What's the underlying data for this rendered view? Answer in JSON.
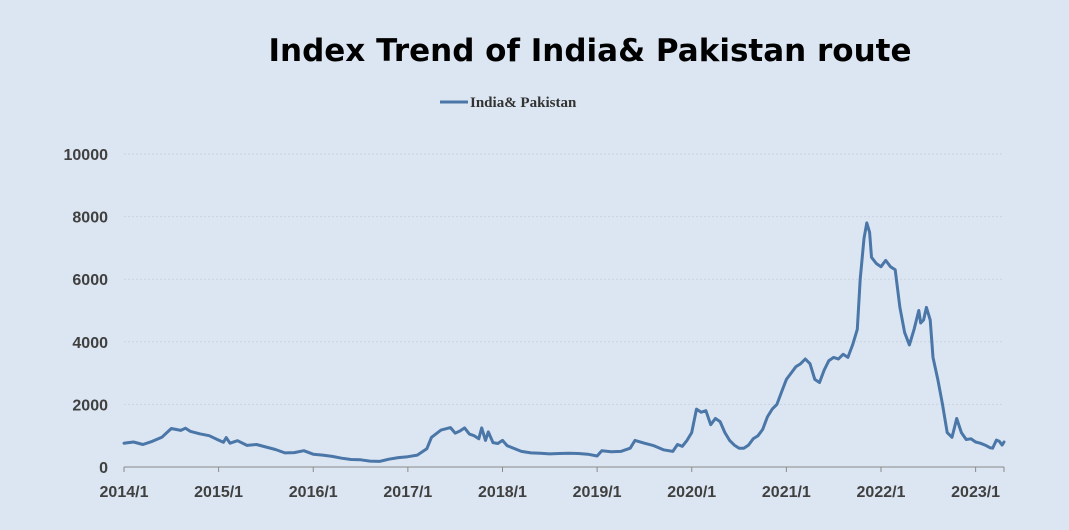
{
  "chart_data": {
    "type": "line",
    "title": "Index Trend of India& Pakistan route",
    "xlabel": "",
    "ylabel": "",
    "ylim": [
      0,
      10000
    ],
    "yticks": [
      0,
      2000,
      4000,
      6000,
      8000,
      10000
    ],
    "xticks": [
      "2014/1",
      "2015/1",
      "2016/1",
      "2017/1",
      "2018/1",
      "2019/1",
      "2020/1",
      "2021/1",
      "2022/1",
      "2023/1"
    ],
    "xlim": [
      2014.0,
      2023.3
    ],
    "grid": "horizontal",
    "legend_position": "top-center",
    "colors": {
      "series": "#4a76a8",
      "background": "#dce6f2"
    },
    "series": [
      {
        "name": "India& Pakistan",
        "points": [
          [
            2014.0,
            760
          ],
          [
            2014.1,
            800
          ],
          [
            2014.2,
            720
          ],
          [
            2014.3,
            820
          ],
          [
            2014.4,
            950
          ],
          [
            2014.5,
            1230
          ],
          [
            2014.6,
            1170
          ],
          [
            2014.65,
            1240
          ],
          [
            2014.7,
            1140
          ],
          [
            2014.8,
            1060
          ],
          [
            2014.9,
            1000
          ],
          [
            2015.0,
            860
          ],
          [
            2015.05,
            790
          ],
          [
            2015.08,
            940
          ],
          [
            2015.12,
            760
          ],
          [
            2015.2,
            840
          ],
          [
            2015.3,
            690
          ],
          [
            2015.4,
            720
          ],
          [
            2015.5,
            640
          ],
          [
            2015.6,
            560
          ],
          [
            2015.7,
            450
          ],
          [
            2015.8,
            460
          ],
          [
            2015.9,
            520
          ],
          [
            2016.0,
            410
          ],
          [
            2016.1,
            380
          ],
          [
            2016.2,
            340
          ],
          [
            2016.3,
            280
          ],
          [
            2016.4,
            240
          ],
          [
            2016.5,
            230
          ],
          [
            2016.6,
            190
          ],
          [
            2016.7,
            180
          ],
          [
            2016.8,
            250
          ],
          [
            2016.9,
            300
          ],
          [
            2017.0,
            330
          ],
          [
            2017.1,
            380
          ],
          [
            2017.2,
            580
          ],
          [
            2017.25,
            950
          ],
          [
            2017.35,
            1180
          ],
          [
            2017.45,
            1260
          ],
          [
            2017.5,
            1080
          ],
          [
            2017.55,
            1150
          ],
          [
            2017.6,
            1250
          ],
          [
            2017.65,
            1050
          ],
          [
            2017.7,
            1000
          ],
          [
            2017.75,
            900
          ],
          [
            2017.78,
            1250
          ],
          [
            2017.82,
            850
          ],
          [
            2017.85,
            1120
          ],
          [
            2017.9,
            780
          ],
          [
            2017.95,
            750
          ],
          [
            2018.0,
            850
          ],
          [
            2018.05,
            680
          ],
          [
            2018.1,
            620
          ],
          [
            2018.2,
            500
          ],
          [
            2018.3,
            450
          ],
          [
            2018.4,
            440
          ],
          [
            2018.5,
            420
          ],
          [
            2018.6,
            430
          ],
          [
            2018.7,
            440
          ],
          [
            2018.8,
            430
          ],
          [
            2018.9,
            410
          ],
          [
            2019.0,
            350
          ],
          [
            2019.05,
            520
          ],
          [
            2019.15,
            490
          ],
          [
            2019.25,
            500
          ],
          [
            2019.35,
            600
          ],
          [
            2019.4,
            850
          ],
          [
            2019.5,
            760
          ],
          [
            2019.6,
            680
          ],
          [
            2019.7,
            550
          ],
          [
            2019.8,
            500
          ],
          [
            2019.85,
            720
          ],
          [
            2019.9,
            660
          ],
          [
            2019.95,
            850
          ],
          [
            2020.0,
            1100
          ],
          [
            2020.05,
            1850
          ],
          [
            2020.1,
            1750
          ],
          [
            2020.15,
            1800
          ],
          [
            2020.2,
            1350
          ],
          [
            2020.25,
            1550
          ],
          [
            2020.3,
            1450
          ],
          [
            2020.35,
            1100
          ],
          [
            2020.4,
            850
          ],
          [
            2020.45,
            700
          ],
          [
            2020.5,
            600
          ],
          [
            2020.55,
            600
          ],
          [
            2020.6,
            700
          ],
          [
            2020.65,
            900
          ],
          [
            2020.7,
            1000
          ],
          [
            2020.75,
            1200
          ],
          [
            2020.8,
            1600
          ],
          [
            2020.85,
            1850
          ],
          [
            2020.9,
            2000
          ],
          [
            2020.95,
            2400
          ],
          [
            2021.0,
            2800
          ],
          [
            2021.05,
            3000
          ],
          [
            2021.1,
            3200
          ],
          [
            2021.15,
            3300
          ],
          [
            2021.2,
            3450
          ],
          [
            2021.25,
            3300
          ],
          [
            2021.3,
            2800
          ],
          [
            2021.35,
            2700
          ],
          [
            2021.4,
            3100
          ],
          [
            2021.45,
            3400
          ],
          [
            2021.5,
            3500
          ],
          [
            2021.55,
            3450
          ],
          [
            2021.6,
            3600
          ],
          [
            2021.65,
            3500
          ],
          [
            2021.7,
            3900
          ],
          [
            2021.75,
            4400
          ],
          [
            2021.78,
            6000
          ],
          [
            2021.82,
            7300
          ],
          [
            2021.85,
            7800
          ],
          [
            2021.88,
            7500
          ],
          [
            2021.9,
            6700
          ],
          [
            2021.95,
            6500
          ],
          [
            2022.0,
            6400
          ],
          [
            2022.05,
            6600
          ],
          [
            2022.1,
            6400
          ],
          [
            2022.15,
            6300
          ],
          [
            2022.2,
            5100
          ],
          [
            2022.25,
            4300
          ],
          [
            2022.3,
            3900
          ],
          [
            2022.35,
            4400
          ],
          [
            2022.4,
            5000
          ],
          [
            2022.42,
            4600
          ],
          [
            2022.45,
            4700
          ],
          [
            2022.48,
            5100
          ],
          [
            2022.52,
            4700
          ],
          [
            2022.55,
            3500
          ],
          [
            2022.6,
            2800
          ],
          [
            2022.65,
            2000
          ],
          [
            2022.7,
            1100
          ],
          [
            2022.75,
            950
          ],
          [
            2022.78,
            1300
          ],
          [
            2022.8,
            1550
          ],
          [
            2022.85,
            1100
          ],
          [
            2022.9,
            880
          ],
          [
            2022.95,
            900
          ],
          [
            2023.0,
            800
          ],
          [
            2023.05,
            760
          ],
          [
            2023.1,
            700
          ],
          [
            2023.15,
            620
          ],
          [
            2023.18,
            600
          ],
          [
            2023.22,
            860
          ],
          [
            2023.25,
            820
          ],
          [
            2023.28,
            700
          ],
          [
            2023.3,
            800
          ]
        ]
      }
    ]
  }
}
